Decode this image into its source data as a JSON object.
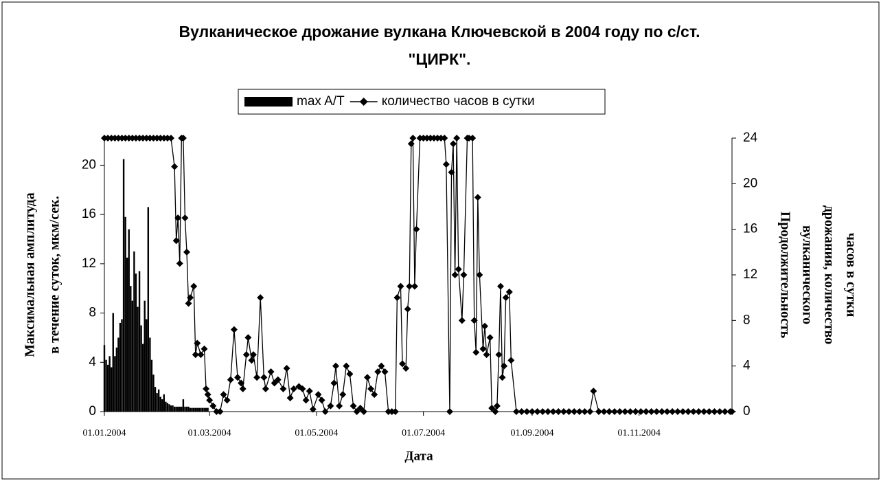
{
  "chart_data": {
    "type": "combo",
    "title": [
      "Вулканическое дрожание вулкана Ключевской в 2004 году  по с/ст.",
      "\"ЦИРК\"."
    ],
    "xlabel": "Дата",
    "ylabel": [
      "Максимальная амплитуда",
      "в течение суток, мкм/сек."
    ],
    "y2label": [
      "Продолжительность",
      "вулканического",
      "дрожания, количество",
      "часов в сутки"
    ],
    "xlim": [
      "2004-01-01",
      "2004-12-24"
    ],
    "xticks": [
      {
        "value": "2004-01-01",
        "label": "01.01.2004"
      },
      {
        "value": "2004-03-01",
        "label": "01.03.2004"
      },
      {
        "value": "2004-05-01",
        "label": "01.05.2004"
      },
      {
        "value": "2004-07-01",
        "label": "01.07.2004"
      },
      {
        "value": "2004-09-01",
        "label": "01.09.2004"
      },
      {
        "value": "2004-11-01",
        "label": "01.11.2004"
      }
    ],
    "ylim": [
      0,
      22.2
    ],
    "yticks": [
      0,
      4,
      8,
      12,
      16,
      20
    ],
    "y2lim": [
      0,
      24
    ],
    "y2ticks": [
      0,
      4,
      8,
      12,
      16,
      20,
      24
    ],
    "legend": "top",
    "series": [
      {
        "name": "max A/T",
        "type": "bar",
        "color": "#000000",
        "x": [
          "2004-01-01",
          "2004-01-02",
          "2004-01-03",
          "2004-01-04",
          "2004-01-05",
          "2004-01-06",
          "2004-01-07",
          "2004-01-08",
          "2004-01-09",
          "2004-01-10",
          "2004-01-11",
          "2004-01-12",
          "2004-01-13",
          "2004-01-14",
          "2004-01-15",
          "2004-01-16",
          "2004-01-17",
          "2004-01-18",
          "2004-01-19",
          "2004-01-20",
          "2004-01-21",
          "2004-01-22",
          "2004-01-23",
          "2004-01-24",
          "2004-01-25",
          "2004-01-26",
          "2004-01-27",
          "2004-01-28",
          "2004-01-29",
          "2004-01-30",
          "2004-01-31",
          "2004-02-01",
          "2004-02-02",
          "2004-02-03",
          "2004-02-04",
          "2004-02-05",
          "2004-02-06",
          "2004-02-07",
          "2004-02-08",
          "2004-02-09",
          "2004-02-10",
          "2004-02-11",
          "2004-02-12",
          "2004-02-13",
          "2004-02-14",
          "2004-02-15",
          "2004-02-16",
          "2004-02-17",
          "2004-02-18",
          "2004-02-19",
          "2004-02-20",
          "2004-02-21",
          "2004-02-22",
          "2004-02-23",
          "2004-02-24",
          "2004-02-25",
          "2004-02-26",
          "2004-02-27",
          "2004-02-28",
          "2004-02-29"
        ],
        "values": [
          5.4,
          4.2,
          3.8,
          4.5,
          3.6,
          8.0,
          4.5,
          5.2,
          6.0,
          7.2,
          7.5,
          20.5,
          15.8,
          12.5,
          14.8,
          10.2,
          9.0,
          13.0,
          11.2,
          8.5,
          11.4,
          7.0,
          5.5,
          9.0,
          7.5,
          16.6,
          6.0,
          4.2,
          3.0,
          2.0,
          1.5,
          1.8,
          1.2,
          1.0,
          1.4,
          0.8,
          0.7,
          0.6,
          0.5,
          0.5,
          0.4,
          0.4,
          0.4,
          0.4,
          0.4,
          1.0,
          0.4,
          0.4,
          0.4,
          0.3,
          0.3,
          0.3,
          0.3,
          0.3,
          0.3,
          0.3,
          0.3,
          0.3,
          0.3,
          0.3
        ]
      },
      {
        "name": "количество часов в сутки",
        "type": "line",
        "axis": "y2",
        "color": "#000000",
        "x": [
          "2004-01-01",
          "2004-01-03",
          "2004-01-05",
          "2004-01-07",
          "2004-01-09",
          "2004-01-11",
          "2004-01-13",
          "2004-01-15",
          "2004-01-17",
          "2004-01-19",
          "2004-01-21",
          "2004-01-23",
          "2004-01-25",
          "2004-01-27",
          "2004-01-29",
          "2004-01-31",
          "2004-02-02",
          "2004-02-04",
          "2004-02-06",
          "2004-02-08",
          "2004-02-10",
          "2004-02-11",
          "2004-02-12",
          "2004-02-13",
          "2004-02-14",
          "2004-02-15",
          "2004-02-16",
          "2004-02-17",
          "2004-02-18",
          "2004-02-19",
          "2004-02-21",
          "2004-02-22",
          "2004-02-23",
          "2004-02-25",
          "2004-02-27",
          "2004-02-28",
          "2004-02-29",
          "2004-03-01",
          "2004-03-03",
          "2004-03-05",
          "2004-03-07",
          "2004-03-09",
          "2004-03-11",
          "2004-03-13",
          "2004-03-15",
          "2004-03-17",
          "2004-03-19",
          "2004-03-20",
          "2004-03-22",
          "2004-03-23",
          "2004-03-25",
          "2004-03-26",
          "2004-03-28",
          "2004-03-30",
          "2004-04-01",
          "2004-04-02",
          "2004-04-05",
          "2004-04-07",
          "2004-04-09",
          "2004-04-12",
          "2004-04-14",
          "2004-04-16",
          "2004-04-18",
          "2004-04-21",
          "2004-04-23",
          "2004-04-25",
          "2004-04-27",
          "2004-04-29",
          "2004-05-02",
          "2004-05-04",
          "2004-05-06",
          "2004-05-09",
          "2004-05-11",
          "2004-05-12",
          "2004-05-14",
          "2004-05-16",
          "2004-05-18",
          "2004-05-20",
          "2004-05-22",
          "2004-05-24",
          "2004-05-26",
          "2004-05-28",
          "2004-05-30",
          "2004-06-01",
          "2004-06-03",
          "2004-06-05",
          "2004-06-07",
          "2004-06-09",
          "2004-06-11",
          "2004-06-13",
          "2004-06-15",
          "2004-06-16",
          "2004-06-18",
          "2004-06-19",
          "2004-06-21",
          "2004-06-22",
          "2004-06-23",
          "2004-06-24",
          "2004-06-25",
          "2004-06-26",
          "2004-06-27",
          "2004-06-29",
          "2004-07-01",
          "2004-07-03",
          "2004-07-05",
          "2004-07-07",
          "2004-07-09",
          "2004-07-11",
          "2004-07-13",
          "2004-07-14",
          "2004-07-16",
          "2004-07-17",
          "2004-07-18",
          "2004-07-19",
          "2004-07-20",
          "2004-07-21",
          "2004-07-23",
          "2004-07-24",
          "2004-07-26",
          "2004-07-27",
          "2004-07-29",
          "2004-07-30",
          "2004-07-31",
          "2004-08-01",
          "2004-08-02",
          "2004-08-04",
          "2004-08-05",
          "2004-08-06",
          "2004-08-08",
          "2004-08-09",
          "2004-08-11",
          "2004-08-12",
          "2004-08-13",
          "2004-08-14",
          "2004-08-15",
          "2004-08-16",
          "2004-08-17",
          "2004-08-19",
          "2004-08-20",
          "2004-08-23",
          "2004-08-26",
          "2004-08-29",
          "2004-09-01",
          "2004-09-04",
          "2004-09-07",
          "2004-09-10",
          "2004-09-13",
          "2004-09-16",
          "2004-09-19",
          "2004-09-22",
          "2004-09-25",
          "2004-09-28",
          "2004-10-01",
          "2004-10-04",
          "2004-10-06",
          "2004-10-09",
          "2004-10-12",
          "2004-10-15",
          "2004-10-18",
          "2004-10-21",
          "2004-10-24",
          "2004-10-27",
          "2004-10-30",
          "2004-11-02",
          "2004-11-05",
          "2004-11-08",
          "2004-11-11",
          "2004-11-14",
          "2004-11-17",
          "2004-11-20",
          "2004-11-23",
          "2004-11-26",
          "2004-11-29",
          "2004-12-02",
          "2004-12-05",
          "2004-12-08",
          "2004-12-11",
          "2004-12-14",
          "2004-12-17",
          "2004-12-20",
          "2004-12-23",
          "2004-12-24"
        ],
        "values": [
          24,
          24,
          24,
          24,
          24,
          24,
          24,
          24,
          24,
          24,
          24,
          24,
          24,
          24,
          24,
          24,
          24,
          24,
          24,
          24,
          21.5,
          15,
          17,
          13,
          24,
          24,
          17,
          14,
          9.5,
          10,
          11,
          5,
          6,
          5,
          5.5,
          2,
          1.5,
          1,
          0.5,
          0,
          0,
          1.5,
          1,
          2.8,
          7.2,
          3,
          2.5,
          2,
          5,
          6.5,
          4.5,
          5,
          3,
          10,
          3,
          2,
          3.5,
          2.5,
          2.8,
          2,
          3.8,
          1.2,
          2,
          2.2,
          2,
          1,
          1.8,
          0.2,
          1.5,
          1,
          0,
          0.5,
          2.5,
          4,
          0.5,
          1.5,
          4,
          3.3,
          0.5,
          0,
          0.3,
          0,
          3,
          2,
          1.5,
          3.5,
          4,
          3.5,
          0,
          0,
          0,
          10,
          11,
          4.2,
          3.8,
          9,
          11,
          23.5,
          24,
          11,
          16,
          24,
          24,
          24,
          24,
          24,
          24,
          24,
          24,
          21.7,
          0,
          21,
          23.5,
          12,
          24,
          12.5,
          8,
          12,
          24,
          24,
          24,
          8,
          5.2,
          18.8,
          12,
          5.5,
          7.5,
          5,
          6.5,
          0.3,
          0,
          0.5,
          5,
          11,
          3,
          4,
          10,
          10.5,
          4.5,
          0,
          0,
          0,
          0,
          0,
          0,
          0,
          0,
          0,
          0,
          0,
          0,
          0,
          0,
          0,
          1.8,
          0,
          0,
          0,
          0,
          0,
          0,
          0,
          0,
          0,
          0,
          0,
          0,
          0,
          0,
          0,
          0,
          0,
          0,
          0,
          0,
          0,
          0,
          0,
          0,
          0,
          0,
          0
        ]
      }
    ]
  }
}
